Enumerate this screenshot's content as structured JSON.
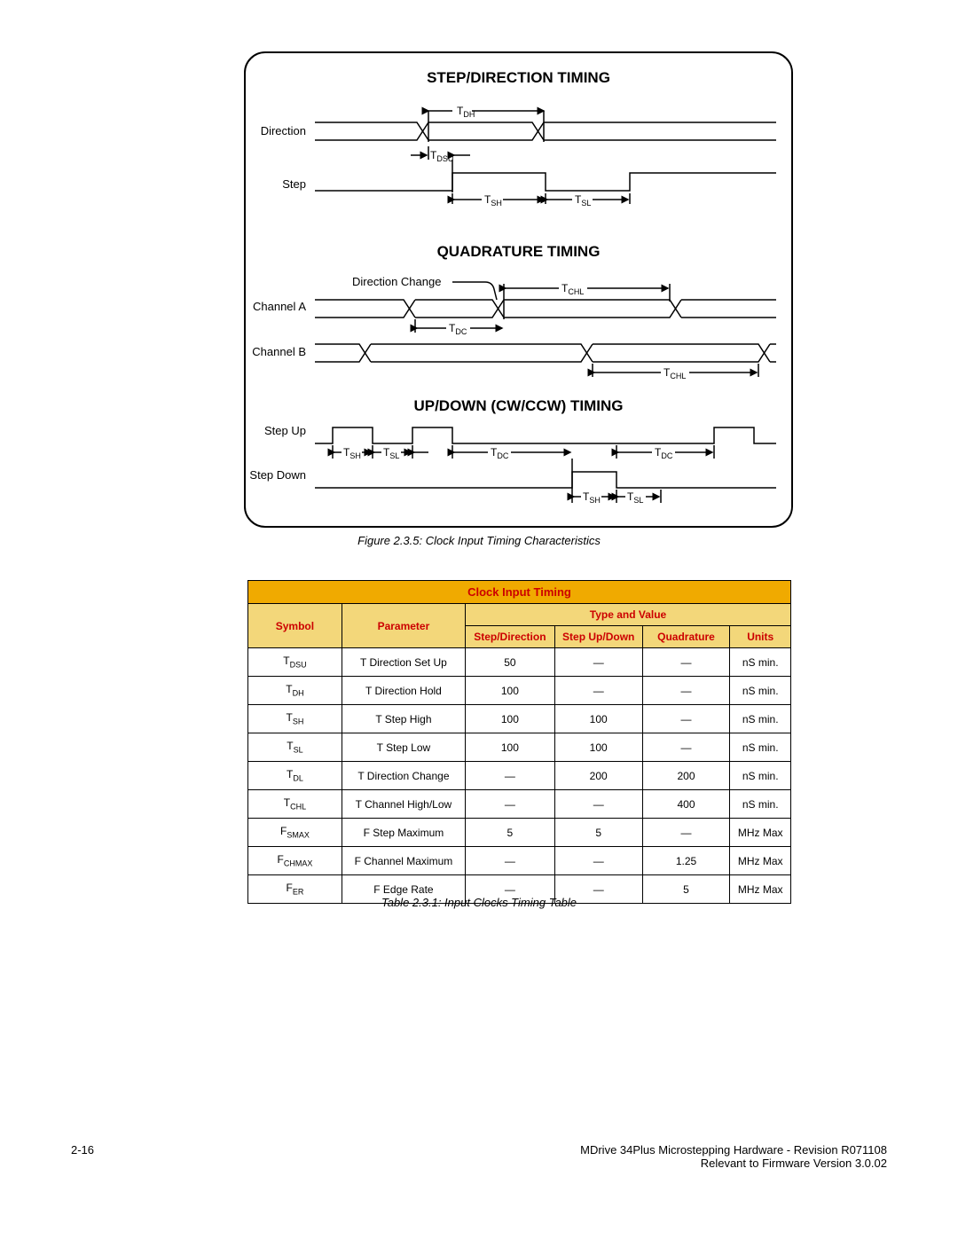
{
  "figure": {
    "caption": "Figure 2.3.5: Clock Input Timing Characteristics",
    "sections": {
      "sd": {
        "title": "STEP/DIRECTION TIMING",
        "labels": {
          "direction": "Direction",
          "step": "Step",
          "tdh": "T",
          "tdh_sub": "DH",
          "tdsu": "T",
          "tdsu_sub": "DSU",
          "tsh": "T",
          "tsh_sub": "SH",
          "tsl": "T",
          "tsl_sub": "SL"
        }
      },
      "quad": {
        "title": "QUADRATURE TIMING",
        "labels": {
          "dirchange": "Direction Change",
          "cha": "Channel A",
          "chb": "Channel B",
          "tchl": "T",
          "tchl_sub": "CHL",
          "tdc": "T",
          "tdc_sub": "DC"
        }
      },
      "ud": {
        "title": "UP/DOWN (CW/CCW) TIMING",
        "labels": {
          "stepup": "Step Up",
          "stepdown": "Step Down",
          "tsh": "T",
          "tsh_sub": "SH",
          "tsl": "T",
          "tsl_sub": "SL",
          "tdc": "T",
          "tdc_sub": "DC"
        }
      }
    }
  },
  "table": {
    "caption": "Table 2.3.1: Input Clocks Timing Table",
    "title": "Clock Input Timing",
    "headers": {
      "symbol": "Symbol",
      "parameter": "Parameter",
      "type_and_value": "Type and Value",
      "step_direction": "Step/Direction",
      "step_updown": "Step Up/Down",
      "quadrature": "Quadrature",
      "units": "Units"
    },
    "rows": [
      {
        "sym": "T",
        "sub": "DSU",
        "param": "T Direction Set Up",
        "sd": "50",
        "ud": "—",
        "q": "—",
        "u": "nS min."
      },
      {
        "sym": "T",
        "sub": "DH",
        "param": "T Direction Hold",
        "sd": "100",
        "ud": "—",
        "q": "—",
        "u": "nS min."
      },
      {
        "sym": "T",
        "sub": "SH",
        "param": "T Step High",
        "sd": "100",
        "ud": "100",
        "q": "—",
        "u": "nS min."
      },
      {
        "sym": "T",
        "sub": "SL",
        "param": "T Step Low",
        "sd": "100",
        "ud": "100",
        "q": "—",
        "u": "nS min."
      },
      {
        "sym": "T",
        "sub": "DL",
        "param": "T Direction Change",
        "sd": "—",
        "ud": "200",
        "q": "200",
        "u": "nS min."
      },
      {
        "sym": "T",
        "sub": "CHL",
        "param": "T Channel High/Low",
        "sd": "—",
        "ud": "—",
        "q": "400",
        "u": "nS min."
      },
      {
        "sym": "F",
        "sub": "SMAX",
        "param": "F Step Maximum",
        "sd": "5",
        "ud": "5",
        "q": "—",
        "u": "MHz Max"
      },
      {
        "sym": "F",
        "sub": "CHMAX",
        "param": "F Channel Maximum",
        "sd": "—",
        "ud": "—",
        "q": "1.25",
        "u": "MHz Max"
      },
      {
        "sym": "F",
        "sub": "ER",
        "param": "F Edge Rate",
        "sd": "—",
        "ud": "—",
        "q": "5",
        "u": "MHz Max"
      }
    ]
  },
  "footer": {
    "page": "2-16",
    "right1": "MDrive 34Plus Microstepping Hardware - Revision R071108",
    "right2": "Relevant to Firmware Version 3.0.02"
  }
}
